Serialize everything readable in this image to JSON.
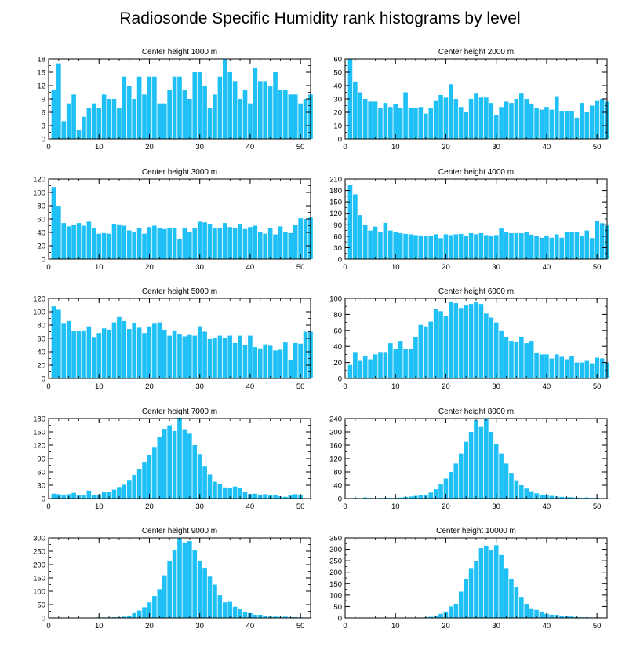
{
  "title": "Radiosonde Specific Humidity rank histograms by level",
  "colors": {
    "bar": "#1ec0f5",
    "bar_edge": "#ffffff",
    "axis": "#000000"
  },
  "chart_data": [
    {
      "type": "bar",
      "title": "Center height 1000 m",
      "xlim": [
        0,
        52
      ],
      "ylim": [
        0,
        18
      ],
      "xticks": [
        0,
        10,
        20,
        30,
        40,
        50
      ],
      "yticks": [
        0,
        3,
        6,
        9,
        12,
        15,
        18
      ],
      "values": [
        11,
        17,
        4,
        8,
        10,
        2,
        5,
        7,
        8,
        7,
        10,
        9,
        9,
        7,
        14,
        12,
        9,
        14,
        10,
        14,
        14,
        8,
        8,
        11,
        14,
        14,
        11,
        9,
        15,
        15,
        12,
        7,
        10,
        14,
        18,
        15,
        13,
        9,
        11,
        8,
        16,
        13,
        13,
        12,
        15,
        11,
        11,
        10,
        10,
        8,
        9,
        10
      ]
    },
    {
      "type": "bar",
      "title": "Center height 2000 m",
      "xlim": [
        0,
        52
      ],
      "ylim": [
        0,
        60
      ],
      "xticks": [
        0,
        10,
        20,
        30,
        40,
        50
      ],
      "yticks": [
        0,
        10,
        20,
        30,
        40,
        50,
        60
      ],
      "values": [
        60,
        43,
        35,
        30,
        28,
        28,
        23,
        27,
        24,
        26,
        23,
        35,
        23,
        23,
        24,
        19,
        23,
        29,
        33,
        31,
        41,
        30,
        24,
        20,
        30,
        34,
        31,
        31,
        27,
        18,
        24,
        28,
        27,
        30,
        34,
        30,
        26,
        23,
        22,
        24,
        22,
        32,
        21,
        21,
        21,
        16,
        27,
        20,
        25,
        29,
        30,
        28
      ]
    },
    {
      "type": "bar",
      "title": "Center height 3000 m",
      "xlim": [
        0,
        52
      ],
      "ylim": [
        0,
        120
      ],
      "xticks": [
        0,
        10,
        20,
        30,
        40,
        50
      ],
      "yticks": [
        0,
        20,
        40,
        60,
        80,
        100,
        120
      ],
      "values": [
        108,
        80,
        54,
        49,
        51,
        54,
        50,
        56,
        46,
        38,
        39,
        38,
        53,
        52,
        50,
        43,
        41,
        46,
        38,
        48,
        50,
        47,
        45,
        46,
        46,
        30,
        46,
        41,
        47,
        56,
        55,
        53,
        46,
        47,
        54,
        48,
        46,
        53,
        45,
        48,
        50,
        40,
        38,
        47,
        37,
        49,
        41,
        39,
        51,
        61,
        60,
        62
      ]
    },
    {
      "type": "bar",
      "title": "Center height 4000 m",
      "xlim": [
        0,
        52
      ],
      "ylim": [
        0,
        210
      ],
      "xticks": [
        0,
        10,
        20,
        30,
        40,
        50
      ],
      "yticks": [
        0,
        30,
        60,
        90,
        120,
        150,
        180,
        210
      ],
      "values": [
        195,
        170,
        115,
        90,
        75,
        85,
        70,
        95,
        75,
        70,
        68,
        66,
        65,
        63,
        62,
        62,
        60,
        65,
        55,
        65,
        63,
        65,
        66,
        60,
        68,
        65,
        68,
        63,
        60,
        63,
        80,
        70,
        68,
        68,
        68,
        70,
        64,
        60,
        56,
        62,
        56,
        65,
        56,
        70,
        70,
        70,
        60,
        75,
        55,
        100,
        94,
        88
      ]
    },
    {
      "type": "bar",
      "title": "Center height 5000 m",
      "xlim": [
        0,
        52
      ],
      "ylim": [
        0,
        120
      ],
      "xticks": [
        0,
        10,
        20,
        30,
        40,
        50
      ],
      "yticks": [
        0,
        20,
        40,
        60,
        80,
        100,
        120
      ],
      "values": [
        108,
        103,
        82,
        86,
        71,
        71,
        72,
        78,
        62,
        68,
        75,
        73,
        84,
        92,
        86,
        74,
        83,
        76,
        68,
        78,
        82,
        84,
        73,
        64,
        72,
        66,
        63,
        65,
        64,
        78,
        70,
        59,
        61,
        64,
        60,
        64,
        53,
        64,
        50,
        64,
        47,
        45,
        51,
        49,
        42,
        43,
        54,
        28,
        53,
        52,
        70,
        70
      ]
    },
    {
      "type": "bar",
      "title": "Center height 6000 m",
      "xlim": [
        0,
        52
      ],
      "ylim": [
        0,
        100
      ],
      "xticks": [
        0,
        10,
        20,
        30,
        40,
        50
      ],
      "yticks": [
        0,
        20,
        40,
        60,
        80,
        100
      ],
      "values": [
        17,
        33,
        22,
        28,
        24,
        30,
        33,
        33,
        44,
        37,
        47,
        37,
        37,
        52,
        67,
        65,
        71,
        87,
        84,
        78,
        96,
        94,
        88,
        91,
        93,
        96,
        93,
        81,
        76,
        70,
        60,
        52,
        47,
        46,
        52,
        44,
        47,
        32,
        30,
        30,
        25,
        30,
        27,
        24,
        28,
        20,
        20,
        22,
        19,
        26,
        25,
        20
      ]
    },
    {
      "type": "bar",
      "title": "Center height 7000 m",
      "xlim": [
        0,
        52
      ],
      "ylim": [
        0,
        180
      ],
      "xticks": [
        0,
        10,
        20,
        30,
        40,
        50
      ],
      "yticks": [
        0,
        30,
        60,
        90,
        120,
        150,
        180
      ],
      "values": [
        11,
        10,
        9,
        10,
        13,
        8,
        7,
        18,
        8,
        9,
        14,
        15,
        20,
        26,
        31,
        42,
        53,
        67,
        81,
        98,
        116,
        138,
        157,
        165,
        152,
        182,
        156,
        146,
        120,
        100,
        72,
        54,
        38,
        33,
        25,
        24,
        27,
        23,
        15,
        10,
        11,
        9,
        10,
        8,
        7,
        5,
        4,
        7,
        10,
        7,
        0,
        0
      ]
    },
    {
      "type": "bar",
      "title": "Center height 8000 m",
      "xlim": [
        0,
        52
      ],
      "ylim": [
        0,
        240
      ],
      "xticks": [
        0,
        10,
        20,
        30,
        40,
        50
      ],
      "yticks": [
        0,
        40,
        80,
        120,
        160,
        200,
        240
      ],
      "values": [
        1,
        2,
        1,
        3,
        2,
        1,
        2,
        3,
        2,
        2,
        3,
        5,
        6,
        8,
        10,
        12,
        18,
        28,
        42,
        60,
        80,
        105,
        135,
        170,
        200,
        235,
        215,
        240,
        200,
        165,
        135,
        105,
        75,
        55,
        40,
        30,
        22,
        16,
        12,
        10,
        8,
        6,
        5,
        4,
        4,
        3,
        2,
        3,
        2,
        2,
        1,
        1
      ]
    },
    {
      "type": "bar",
      "title": "Center height 9000 m",
      "xlim": [
        0,
        52
      ],
      "ylim": [
        0,
        300
      ],
      "xticks": [
        0,
        10,
        20,
        30,
        40,
        50
      ],
      "yticks": [
        0,
        50,
        100,
        150,
        200,
        250,
        300
      ],
      "values": [
        1,
        1,
        1,
        1,
        1,
        1,
        1,
        1,
        1,
        2,
        2,
        2,
        3,
        3,
        5,
        9,
        18,
        28,
        40,
        58,
        82,
        108,
        160,
        215,
        255,
        298,
        283,
        288,
        255,
        215,
        185,
        155,
        125,
        85,
        58,
        60,
        42,
        33,
        22,
        18,
        12,
        12,
        6,
        5,
        5,
        4,
        5,
        3,
        3,
        2,
        1,
        1
      ]
    },
    {
      "type": "bar",
      "title": "Center height 10000 m",
      "xlim": [
        0,
        52
      ],
      "ylim": [
        0,
        350
      ],
      "xticks": [
        0,
        10,
        20,
        30,
        40,
        50
      ],
      "yticks": [
        0,
        50,
        100,
        150,
        200,
        250,
        300,
        350
      ],
      "values": [
        1,
        1,
        1,
        1,
        1,
        1,
        1,
        1,
        1,
        1,
        1,
        1,
        2,
        2,
        2,
        3,
        5,
        8,
        18,
        28,
        50,
        62,
        115,
        170,
        215,
        250,
        305,
        315,
        295,
        318,
        275,
        215,
        170,
        135,
        92,
        62,
        42,
        35,
        28,
        18,
        14,
        14,
        10,
        8,
        6,
        4,
        3,
        3,
        2,
        2,
        1,
        1
      ]
    }
  ]
}
